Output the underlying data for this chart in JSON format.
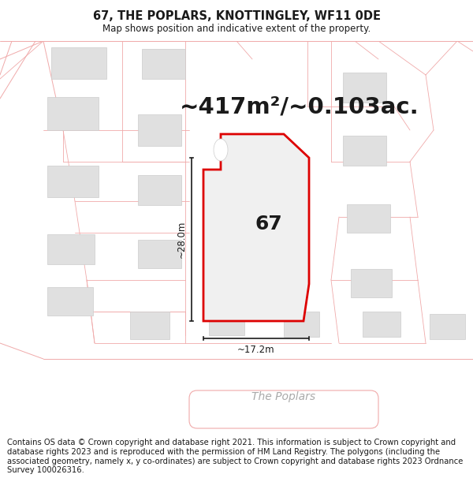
{
  "title": "67, THE POPLARS, KNOTTINGLEY, WF11 0DE",
  "subtitle": "Map shows position and indicative extent of the property.",
  "area_label": "~417m²/~0.103ac.",
  "plot_number": "67",
  "dim_width": "~17.2m",
  "dim_height": "~28.0m",
  "street_name": "The Poplars",
  "footer_text": "Contains OS data © Crown copyright and database right 2021. This information is subject to Crown copyright and database rights 2023 and is reproduced with the permission of HM Land Registry. The polygons (including the associated geometry, namely x, y co-ordinates) are subject to Crown copyright and database rights 2023 Ordnance Survey 100026316.",
  "bg_color": "#ffffff",
  "map_bg": "#ffffff",
  "road_color": "#f0aaaa",
  "plot_fill": "#f0f0f0",
  "plot_border": "#dd0000",
  "building_fill": "#e0e0e0",
  "building_border": "#cccccc",
  "dim_line_color": "#1a1a1a",
  "text_color": "#1a1a1a",
  "title_fontsize": 10.5,
  "subtitle_fontsize": 8.5,
  "area_fontsize": 21,
  "plot_num_fontsize": 18,
  "dim_fontsize": 8.5,
  "street_fontsize": 10,
  "footer_fontsize": 7.2
}
